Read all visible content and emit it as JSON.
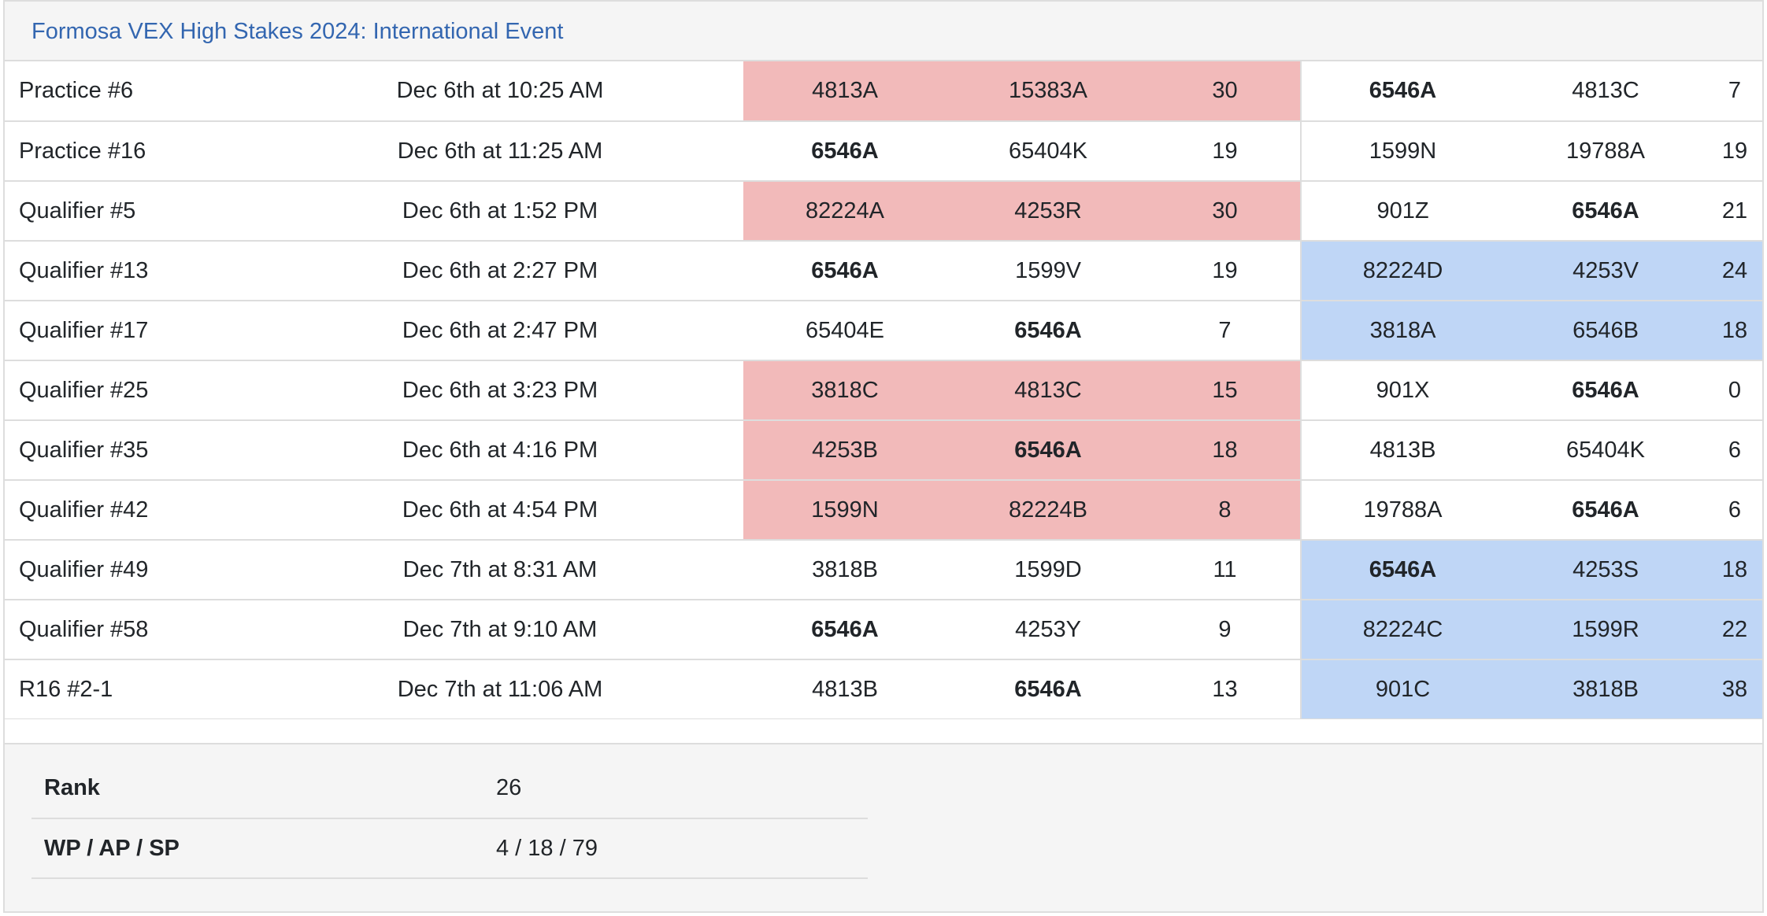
{
  "title": "Formosa VEX High Stakes 2024: International Event",
  "colors": {
    "red_alliance": "#f2baba",
    "blue_alliance": "#bfd6f6",
    "title_link": "#3366b0"
  },
  "matches": [
    {
      "name": "Practice #6",
      "time": "Dec 6th at 10:25 AM",
      "red": [
        "4813A",
        "15383A"
      ],
      "red_score": "30",
      "blue": [
        "6546A",
        "4813C"
      ],
      "blue_score": "7",
      "winner": "red",
      "bold_red": [
        false,
        false
      ],
      "bold_blue": [
        true,
        false
      ]
    },
    {
      "name": "Practice #16",
      "time": "Dec 6th at 11:25 AM",
      "red": [
        "6546A",
        "65404K"
      ],
      "red_score": "19",
      "blue": [
        "1599N",
        "19788A"
      ],
      "blue_score": "19",
      "winner": "tie",
      "bold_red": [
        true,
        false
      ],
      "bold_blue": [
        false,
        false
      ]
    },
    {
      "name": "Qualifier #5",
      "time": "Dec 6th at 1:52 PM",
      "red": [
        "82224A",
        "4253R"
      ],
      "red_score": "30",
      "blue": [
        "901Z",
        "6546A"
      ],
      "blue_score": "21",
      "winner": "red",
      "bold_red": [
        false,
        false
      ],
      "bold_blue": [
        false,
        true
      ]
    },
    {
      "name": "Qualifier #13",
      "time": "Dec 6th at 2:27 PM",
      "red": [
        "6546A",
        "1599V"
      ],
      "red_score": "19",
      "blue": [
        "82224D",
        "4253V"
      ],
      "blue_score": "24",
      "winner": "blue",
      "bold_red": [
        true,
        false
      ],
      "bold_blue": [
        false,
        false
      ]
    },
    {
      "name": "Qualifier #17",
      "time": "Dec 6th at 2:47 PM",
      "red": [
        "65404E",
        "6546A"
      ],
      "red_score": "7",
      "blue": [
        "3818A",
        "6546B"
      ],
      "blue_score": "18",
      "winner": "blue",
      "bold_red": [
        false,
        true
      ],
      "bold_blue": [
        false,
        false
      ]
    },
    {
      "name": "Qualifier #25",
      "time": "Dec 6th at 3:23 PM",
      "red": [
        "3818C",
        "4813C"
      ],
      "red_score": "15",
      "blue": [
        "901X",
        "6546A"
      ],
      "blue_score": "0",
      "winner": "red",
      "bold_red": [
        false,
        false
      ],
      "bold_blue": [
        false,
        true
      ]
    },
    {
      "name": "Qualifier #35",
      "time": "Dec 6th at 4:16 PM",
      "red": [
        "4253B",
        "6546A"
      ],
      "red_score": "18",
      "blue": [
        "4813B",
        "65404K"
      ],
      "blue_score": "6",
      "winner": "red",
      "bold_red": [
        false,
        true
      ],
      "bold_blue": [
        false,
        false
      ]
    },
    {
      "name": "Qualifier #42",
      "time": "Dec 6th at 4:54 PM",
      "red": [
        "1599N",
        "82224B"
      ],
      "red_score": "8",
      "blue": [
        "19788A",
        "6546A"
      ],
      "blue_score": "6",
      "winner": "red",
      "bold_red": [
        false,
        false
      ],
      "bold_blue": [
        false,
        true
      ]
    },
    {
      "name": "Qualifier #49",
      "time": "Dec 7th at 8:31 AM",
      "red": [
        "3818B",
        "1599D"
      ],
      "red_score": "11",
      "blue": [
        "6546A",
        "4253S"
      ],
      "blue_score": "18",
      "winner": "blue",
      "bold_red": [
        false,
        false
      ],
      "bold_blue": [
        true,
        false
      ]
    },
    {
      "name": "Qualifier #58",
      "time": "Dec 7th at 9:10 AM",
      "red": [
        "6546A",
        "4253Y"
      ],
      "red_score": "9",
      "blue": [
        "82224C",
        "1599R"
      ],
      "blue_score": "22",
      "winner": "blue",
      "bold_red": [
        true,
        false
      ],
      "bold_blue": [
        false,
        false
      ]
    },
    {
      "name": "R16 #2-1",
      "time": "Dec 7th at 11:06 AM",
      "red": [
        "4813B",
        "6546A"
      ],
      "red_score": "13",
      "blue": [
        "901C",
        "3818B"
      ],
      "blue_score": "38",
      "winner": "blue",
      "bold_red": [
        false,
        true
      ],
      "bold_blue": [
        false,
        false
      ]
    }
  ],
  "stats": [
    {
      "label": "Rank",
      "value": "26"
    },
    {
      "label": "WP / AP / SP",
      "value": "4 / 18 / 79"
    }
  ]
}
